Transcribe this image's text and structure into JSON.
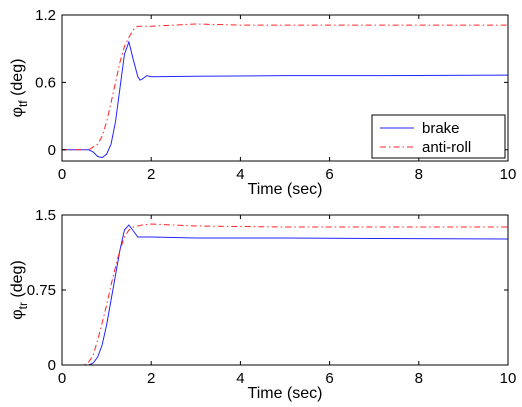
{
  "chart_data": [
    {
      "type": "line",
      "xlabel": "Time (sec)",
      "ylabel": {
        "main": "φ",
        "sub": "tf",
        "unit": " (deg)"
      },
      "xlim": [
        0,
        10
      ],
      "ylim": [
        -0.1,
        1.2
      ],
      "xticks": [
        "0",
        "2",
        "4",
        "6",
        "8",
        "10"
      ],
      "yticks": [
        "0",
        "0.6",
        "1.2"
      ],
      "grid": false,
      "legend": "bottom-right",
      "series": [
        {
          "name": "brake",
          "color": "#2424ff",
          "style": "solid",
          "x": [
            0,
            0.6,
            0.7,
            0.8,
            0.9,
            1.0,
            1.1,
            1.2,
            1.3,
            1.4,
            1.5,
            1.6,
            1.7,
            1.75,
            1.8,
            1.9,
            2.0,
            3,
            5,
            7,
            10
          ],
          "y": [
            0,
            0,
            -0.02,
            -0.06,
            -0.07,
            -0.04,
            0.05,
            0.25,
            0.55,
            0.85,
            0.96,
            0.8,
            0.65,
            0.62,
            0.63,
            0.66,
            0.65,
            0.655,
            0.66,
            0.66,
            0.665
          ]
        },
        {
          "name": "anti-roll",
          "color": "#ff2424",
          "style": "dashdot",
          "x": [
            0,
            0.6,
            0.8,
            0.9,
            1.0,
            1.1,
            1.2,
            1.3,
            1.4,
            1.5,
            1.6,
            1.7,
            1.8,
            2.0,
            2.5,
            3,
            4,
            6,
            8,
            10
          ],
          "y": [
            0,
            0,
            0.05,
            0.12,
            0.25,
            0.42,
            0.6,
            0.78,
            0.92,
            1.0,
            1.07,
            1.1,
            1.1,
            1.1,
            1.11,
            1.12,
            1.11,
            1.11,
            1.11,
            1.11
          ]
        }
      ]
    },
    {
      "type": "line",
      "xlabel": "Time (sec)",
      "ylabel": {
        "main": "φ",
        "sub": "tr",
        "unit": " (deg)"
      },
      "xlim": [
        0,
        10
      ],
      "ylim": [
        0,
        1.5
      ],
      "xticks": [
        "0",
        "2",
        "4",
        "6",
        "8",
        "10"
      ],
      "yticks": [
        "0",
        "0.75",
        "1.5"
      ],
      "grid": false,
      "legend": "none",
      "series": [
        {
          "name": "brake",
          "color": "#2424ff",
          "style": "solid",
          "x": [
            0,
            0.6,
            0.7,
            0.8,
            0.9,
            1.0,
            1.1,
            1.2,
            1.3,
            1.4,
            1.5,
            1.6,
            1.7,
            1.8,
            2.0,
            3,
            5,
            7,
            10
          ],
          "y": [
            0,
            0,
            0.02,
            0.08,
            0.2,
            0.4,
            0.65,
            0.9,
            1.15,
            1.35,
            1.4,
            1.34,
            1.28,
            1.28,
            1.28,
            1.27,
            1.27,
            1.265,
            1.26
          ]
        },
        {
          "name": "anti-roll",
          "color": "#ff2424",
          "style": "dashdot",
          "x": [
            0,
            0.5,
            0.6,
            0.7,
            0.8,
            0.9,
            1.0,
            1.1,
            1.2,
            1.3,
            1.4,
            1.5,
            1.6,
            1.8,
            2.0,
            2.5,
            3,
            5,
            7,
            10
          ],
          "y": [
            0,
            0,
            0.03,
            0.1,
            0.25,
            0.42,
            0.6,
            0.8,
            0.98,
            1.15,
            1.28,
            1.35,
            1.38,
            1.4,
            1.41,
            1.4,
            1.39,
            1.38,
            1.38,
            1.38
          ]
        }
      ]
    }
  ]
}
